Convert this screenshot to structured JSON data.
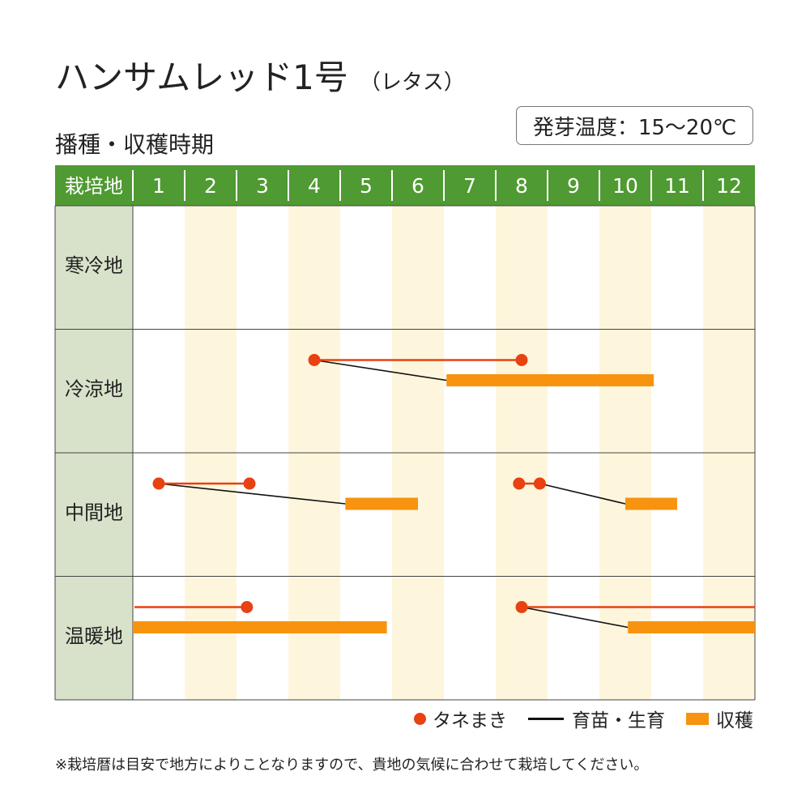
{
  "title": "ハンサムレッド1号",
  "title_sub": "（レタス）",
  "subtitle": "播種・収穫時期",
  "temperature": "発芽温度：15～20℃",
  "legend": {
    "sowing": "タネまき",
    "growing": "育苗・生育",
    "harvest": "収穫"
  },
  "footnote": "※栽培暦は目安で地方によりことなりますので、貴地の気候に合わせて栽培してください。",
  "colors": {
    "header_green": "#4f9a32",
    "row_label_bg": "#d8e2ca",
    "stripe_yellow": "#fdf6dc",
    "sowing_red": "#e84112",
    "harvest_orange": "#f7930f",
    "growth_black": "#111111"
  },
  "chart_data": {
    "type": "table",
    "header_label": "栽培地",
    "months": [
      "1",
      "2",
      "3",
      "4",
      "5",
      "6",
      "7",
      "8",
      "9",
      "10",
      "11",
      "12"
    ],
    "regions": [
      {
        "name": "寒冷地",
        "sowing": [],
        "growth": [],
        "harvest": []
      },
      {
        "name": "冷涼地",
        "sowing": [
          {
            "start": 4.5,
            "end": 8.5
          }
        ],
        "growth": [
          {
            "from": 4.5,
            "to": 7.05
          }
        ],
        "harvest": [
          {
            "start": 7.05,
            "end": 11.05
          }
        ]
      },
      {
        "name": "中間地",
        "sowing": [
          {
            "start": 1.5,
            "end": 3.25
          },
          {
            "start": 8.45,
            "end": 8.85
          }
        ],
        "growth": [
          {
            "from": 1.5,
            "to": 5.1
          },
          {
            "from": 8.85,
            "to": 10.5
          }
        ],
        "harvest": [
          {
            "start": 5.1,
            "end": 6.5
          },
          {
            "start": 10.5,
            "end": 11.5
          }
        ]
      },
      {
        "name": "温暖地",
        "sowing": [
          {
            "start": 1.0,
            "end": 3.2,
            "open_start": true
          },
          {
            "start": 8.5,
            "end": 13.0,
            "open_end": true
          }
        ],
        "growth": [
          {
            "from": 8.5,
            "to": 10.55
          }
        ],
        "harvest": [
          {
            "start": 1.0,
            "end": 5.9
          },
          {
            "start": 10.55,
            "end": 13.0
          }
        ]
      }
    ]
  }
}
